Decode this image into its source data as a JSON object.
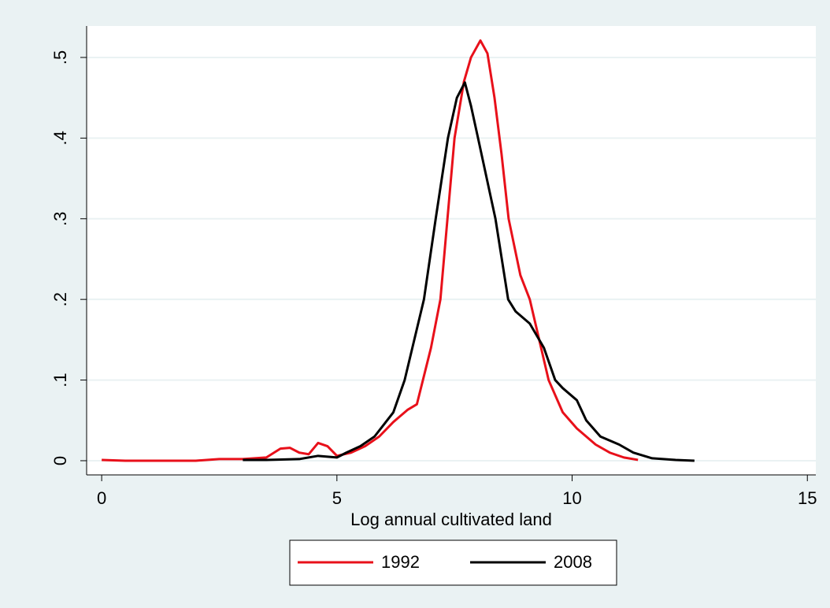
{
  "chart_data": {
    "type": "line",
    "xlabel": "Log annual cultivated land",
    "xlim": [
      -0.32,
      15.18
    ],
    "xticks": [
      0,
      5,
      10,
      15
    ],
    "ylim": [
      -0.0176,
      0.539
    ],
    "yticks": [
      0,
      {
        "value": 0.1,
        "label": ".1"
      },
      {
        "value": 0.2,
        "label": ".2"
      },
      {
        "value": 0.3,
        "label": ".3"
      },
      {
        "value": 0.4,
        "label": ".4"
      },
      {
        "value": 0.5,
        "label": ".5"
      }
    ],
    "grid": true,
    "legend": "bottom",
    "series": [
      {
        "name": "1992",
        "color": "#e8101a",
        "x": [
          0,
          0.5,
          1,
          1.5,
          2,
          2.5,
          3,
          3.5,
          3.8,
          4.0,
          4.2,
          4.4,
          4.6,
          4.8,
          5.0,
          5.3,
          5.6,
          5.9,
          6.2,
          6.5,
          6.7,
          7.0,
          7.2,
          7.35,
          7.5,
          7.7,
          7.85,
          8.05,
          8.2,
          8.35,
          8.5,
          8.65,
          8.9,
          9.1,
          9.3,
          9.5,
          9.8,
          10.1,
          10.5,
          10.8,
          11.1,
          11.4
        ],
        "values": [
          0.001,
          0,
          0,
          0,
          0,
          0.002,
          0.002,
          0.004,
          0.015,
          0.016,
          0.01,
          0.008,
          0.022,
          0.018,
          0.006,
          0.01,
          0.018,
          0.03,
          0.048,
          0.063,
          0.07,
          0.14,
          0.2,
          0.3,
          0.4,
          0.47,
          0.5,
          0.521,
          0.505,
          0.45,
          0.38,
          0.3,
          0.23,
          0.2,
          0.15,
          0.1,
          0.06,
          0.04,
          0.02,
          0.01,
          0.004,
          0.001
        ]
      },
      {
        "name": "2008",
        "color": "#000000",
        "x": [
          3.0,
          3.5,
          4.2,
          4.6,
          5.0,
          5.2,
          5.5,
          5.8,
          6.0,
          6.2,
          6.44,
          6.85,
          7.1,
          7.36,
          7.55,
          7.72,
          7.85,
          8.0,
          8.37,
          8.64,
          8.8,
          9.1,
          9.4,
          9.64,
          9.8,
          10.1,
          10.3,
          10.6,
          11.0,
          11.3,
          11.7,
          12.2,
          12.6
        ],
        "values": [
          0.001,
          0.001,
          0.002,
          0.006,
          0.004,
          0.01,
          0.018,
          0.03,
          0.045,
          0.06,
          0.1,
          0.2,
          0.3,
          0.4,
          0.45,
          0.469,
          0.44,
          0.4,
          0.3,
          0.2,
          0.185,
          0.17,
          0.14,
          0.1,
          0.09,
          0.075,
          0.05,
          0.03,
          0.02,
          0.01,
          0.003,
          0.001,
          0
        ]
      }
    ]
  }
}
